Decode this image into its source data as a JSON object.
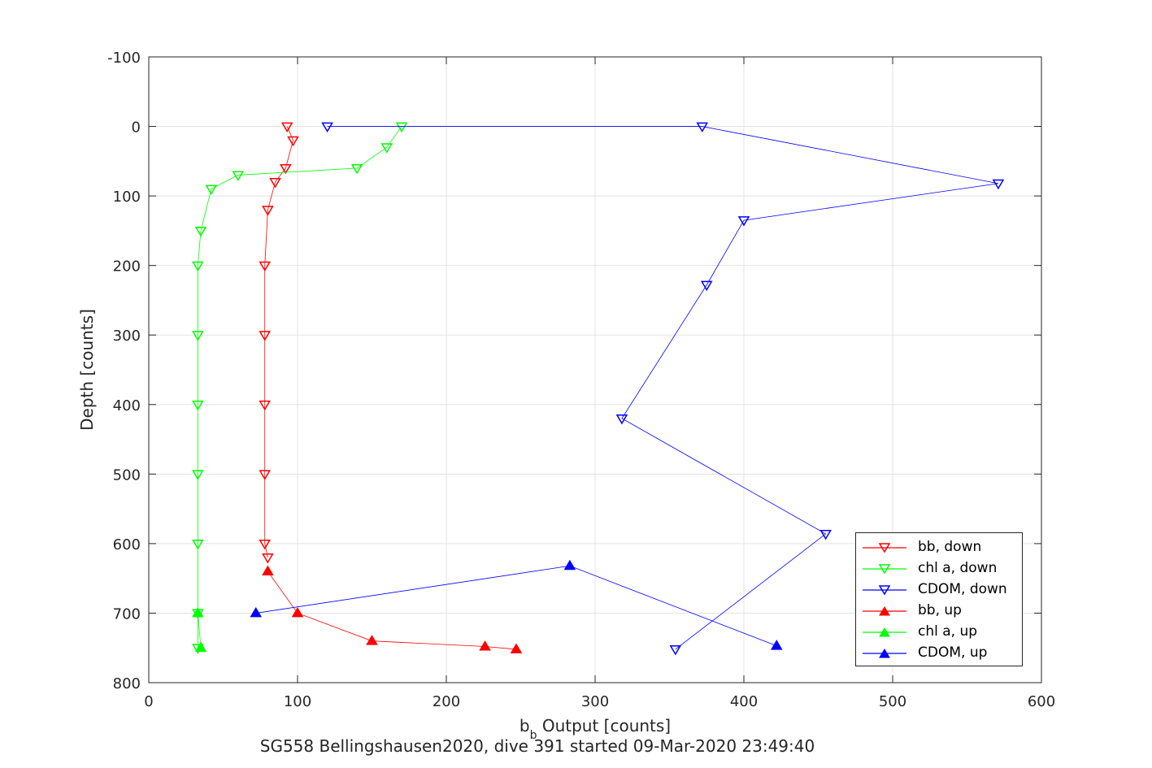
{
  "chart_data": {
    "type": "scatter",
    "xlabel_main": "b",
    "xlabel_sub": "b",
    "xlabel_rest": " Output [counts]",
    "ylabel": "Depth [counts]",
    "subtitle": "SG558 Bellingshausen2020, dive 391 started 09-Mar-2020 23:49:40",
    "xlim": [
      0,
      600
    ],
    "ylim": [
      -100,
      800
    ],
    "y_reversed": true,
    "grid": true,
    "xticks": [
      "0",
      "100",
      "200",
      "300",
      "400",
      "500",
      "600"
    ],
    "yticks": [
      "-100",
      "0",
      "100",
      "200",
      "300",
      "400",
      "500",
      "600",
      "700",
      "800"
    ],
    "legend_position": "bottom-right",
    "series": [
      {
        "name": "bb, down",
        "color": "#ff0000",
        "marker": "triangle-down",
        "points": [
          [
            93,
            0
          ],
          [
            97,
            20
          ],
          [
            92,
            60
          ],
          [
            85,
            80
          ],
          [
            80,
            120
          ],
          [
            78,
            200
          ],
          [
            78,
            300
          ],
          [
            78,
            400
          ],
          [
            78,
            500
          ],
          [
            78,
            600
          ],
          [
            80,
            620
          ]
        ]
      },
      {
        "name": "chl a, down",
        "color": "#00ff00",
        "marker": "triangle-down",
        "points": [
          [
            170,
            0
          ],
          [
            160,
            30
          ],
          [
            140,
            60
          ],
          [
            60,
            70
          ],
          [
            42,
            90
          ],
          [
            35,
            150
          ],
          [
            33,
            200
          ],
          [
            33,
            300
          ],
          [
            33,
            400
          ],
          [
            33,
            500
          ],
          [
            33,
            600
          ],
          [
            33,
            700
          ],
          [
            33,
            750
          ]
        ]
      },
      {
        "name": "CDOM, down",
        "color": "#0000ff",
        "marker": "triangle-down",
        "points": [
          [
            120,
            0
          ],
          [
            372,
            0
          ],
          [
            571,
            82
          ],
          [
            400,
            135
          ],
          [
            375,
            228
          ],
          [
            318,
            420
          ],
          [
            455,
            586
          ],
          [
            354,
            752
          ]
        ]
      },
      {
        "name": "bb, up",
        "color": "#ff0000",
        "marker": "triangle-up",
        "points": [
          [
            80,
            640
          ],
          [
            100,
            700
          ],
          [
            150,
            740
          ],
          [
            226,
            748
          ],
          [
            247,
            752
          ]
        ]
      },
      {
        "name": "chl a, up",
        "color": "#00ff00",
        "marker": "triangle-up",
        "points": [
          [
            33,
            700
          ],
          [
            35,
            750
          ]
        ]
      },
      {
        "name": "CDOM, up",
        "color": "#0000ff",
        "marker": "triangle-up",
        "points": [
          [
            72,
            700
          ],
          [
            283,
            632
          ],
          [
            422,
            747
          ]
        ]
      }
    ]
  }
}
